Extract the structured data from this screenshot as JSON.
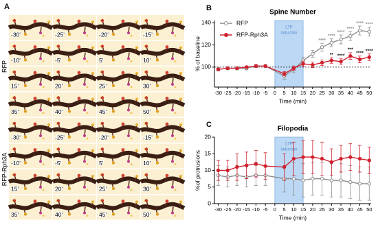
{
  "panel_a": {
    "label": "A",
    "groups": [
      {
        "name": "RFP",
        "tiles": [
          "-30'",
          "-25'",
          "-20'",
          "-15'",
          "-10'",
          "-5'",
          "5'",
          "10'",
          "15'",
          "20'",
          "25'",
          "30'",
          "35'",
          "40'",
          "45'",
          "50'"
        ]
      },
      {
        "name": "RFP-Rph3A",
        "tiles": [
          "-30'",
          "-25'",
          "-20'",
          "-15'",
          "-10'",
          "-5'",
          "5'",
          "10'",
          "15'",
          "20'",
          "25'",
          "30'",
          "35'",
          "40'",
          "45'",
          "50'"
        ]
      }
    ]
  },
  "chart_data": [
    {
      "type": "line",
      "panel_label": "B",
      "title": "Spine Number",
      "xlabel": "Time (min)",
      "ylabel": "% of baseline",
      "x": [
        -30,
        -25,
        -20,
        -15,
        -10,
        -5,
        5,
        10,
        15,
        20,
        25,
        30,
        35,
        40,
        45,
        50
      ],
      "xlim": [
        -32,
        51
      ],
      "xticks": [
        -30,
        -25,
        -20,
        -15,
        -10,
        -5,
        0,
        5,
        10,
        15,
        20,
        25,
        30,
        35,
        40,
        45,
        50
      ],
      "ylim": [
        82,
        142
      ],
      "yticks": [
        100,
        120,
        140
      ],
      "reference_line": 100,
      "shaded_region": {
        "x": [
          0,
          15
        ],
        "label": [
          "LTP",
          "induction"
        ]
      },
      "legend": "top-left",
      "series": [
        {
          "name": "RFP",
          "color": "#8c8c8c",
          "marker": "open-circle",
          "values": [
            98,
            99,
            99,
            99,
            101,
            101,
            92,
            98,
            106,
            112,
            118,
            122,
            125,
            128,
            133,
            132
          ],
          "errors": [
            1.5,
            1.5,
            1.5,
            1.5,
            1.5,
            1.5,
            3,
            3,
            3,
            3,
            3.5,
            3.5,
            4,
            4,
            4,
            4
          ],
          "significance": {
            "color": "#9a9a9a",
            "marks": [
              {
                "x": 25,
                "text": "****"
              },
              {
                "x": 30,
                "text": "****"
              },
              {
                "x": 35,
                "text": "****"
              },
              {
                "x": 40,
                "text": "****"
              },
              {
                "x": 45,
                "text": "****"
              },
              {
                "x": 50,
                "text": "****"
              }
            ]
          }
        },
        {
          "name": "RFP-Rph3A",
          "color": "#d0202e",
          "marker": "circle",
          "values": [
            98,
            99,
            99,
            100,
            101,
            101,
            94,
            99,
            103,
            102,
            104,
            106,
            105,
            110,
            107,
            109
          ],
          "errors": [
            1,
            1,
            1,
            1,
            1,
            1,
            2,
            2,
            2.5,
            2.5,
            2.5,
            2.5,
            2.5,
            3,
            3,
            3
          ],
          "significance": {
            "color": "#222222",
            "marks": [
              {
                "x": 30,
                "text": "**"
              },
              {
                "x": 35,
                "text": "****"
              },
              {
                "x": 40,
                "text": "***"
              },
              {
                "x": 45,
                "text": "****"
              },
              {
                "x": 50,
                "text": "****"
              }
            ]
          }
        }
      ]
    },
    {
      "type": "line",
      "panel_label": "C",
      "title": "Filopodia",
      "xlabel": "Time (min)",
      "ylabel": "%of protrusions",
      "x": [
        -30,
        -25,
        -20,
        -15,
        -10,
        -5,
        5,
        10,
        15,
        20,
        25,
        30,
        35,
        40,
        45,
        50
      ],
      "xlim": [
        -32,
        51
      ],
      "xticks": [
        -30,
        -25,
        -20,
        -15,
        -10,
        -5,
        0,
        5,
        10,
        15,
        20,
        25,
        30,
        35,
        40,
        45,
        50
      ],
      "ylim": [
        0,
        20
      ],
      "yticks": [
        0,
        5,
        10,
        15,
        20
      ],
      "shaded_region": {
        "x": [
          0,
          15
        ],
        "label": [
          "LTP",
          "induction"
        ]
      },
      "series": [
        {
          "name": "RFP",
          "color": "#8c8c8c",
          "marker": "open-circle",
          "values": [
            8.5,
            8,
            8.5,
            8,
            8.5,
            8.5,
            7.5,
            7.5,
            7,
            7.5,
            7.5,
            7,
            7,
            6.5,
            6,
            6
          ],
          "errors": [
            3,
            3,
            3,
            3,
            3,
            3,
            4,
            5,
            5,
            5,
            5,
            5,
            5,
            5,
            5,
            5
          ]
        },
        {
          "name": "RFP-Rph3A",
          "color": "#d0202e",
          "marker": "circle",
          "values": [
            10,
            10,
            11,
            11.5,
            12,
            11.3,
            11,
            13.5,
            14,
            14,
            13.5,
            12.5,
            13.5,
            14,
            13.5,
            13
          ],
          "errors": [
            3,
            3,
            4,
            4,
            4,
            4,
            4,
            5,
            5,
            5,
            5,
            4,
            4,
            4,
            4,
            4
          ]
        }
      ]
    }
  ]
}
